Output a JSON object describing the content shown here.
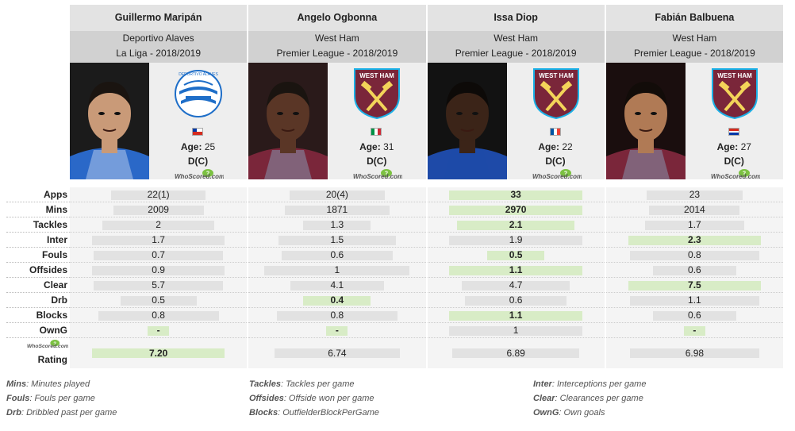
{
  "colors": {
    "best_bar": "#d8ecc6",
    "normal_bar": "#e2e2e2",
    "header_bg": "#d1d1d1",
    "name_bg": "#e3e3e3"
  },
  "players": [
    {
      "name": "Guillermo Maripán",
      "team": "Deportivo Alaves",
      "competition": "La Liga - 2018/2019",
      "age_label": "Age:",
      "age": "25",
      "position": "D(C)",
      "crest": "alaves-crest-icon",
      "flag": "chile-flag-icon",
      "crest_text": "DEPORTIVO ALAVES",
      "ws_logo": "WhoScored.com",
      "stats": [
        {
          "value": "22(1)",
          "fill": 0.53,
          "best": false
        },
        {
          "value": "2009",
          "fill": 0.51,
          "best": false
        },
        {
          "value": "2",
          "fill": 0.63,
          "best": false
        },
        {
          "value": "1.7",
          "fill": 0.75,
          "best": false
        },
        {
          "value": "0.7",
          "fill": 0.73,
          "best": false
        },
        {
          "value": "0.9",
          "fill": 0.75,
          "best": false
        },
        {
          "value": "5.7",
          "fill": 0.73,
          "best": false
        },
        {
          "value": "0.5",
          "fill": 0.43,
          "best": false
        },
        {
          "value": "0.8",
          "fill": 0.68,
          "best": false
        },
        {
          "value": "-",
          "fill": 0.12,
          "best": true
        },
        {
          "value": "7.20",
          "fill": 0.75,
          "best": true
        }
      ]
    },
    {
      "name": "Angelo Ogbonna",
      "team": "West Ham",
      "competition": "Premier League - 2018/2019",
      "age_label": "Age:",
      "age": "31",
      "position": "D(C)",
      "crest": "west-ham-crest-icon",
      "flag": "italy-flag-icon",
      "crest_text": "WEST HAM",
      "ws_logo": "WhoScored.com",
      "stats": [
        {
          "value": "20(4)",
          "fill": 0.54,
          "best": false
        },
        {
          "value": "1871",
          "fill": 0.59,
          "best": false
        },
        {
          "value": "1.3",
          "fill": 0.38,
          "best": false
        },
        {
          "value": "1.5",
          "fill": 0.66,
          "best": false
        },
        {
          "value": "0.6",
          "fill": 0.63,
          "best": false
        },
        {
          "value": "1",
          "fill": 0.82,
          "best": false
        },
        {
          "value": "4.1",
          "fill": 0.53,
          "best": false
        },
        {
          "value": "0.4",
          "fill": 0.38,
          "best": true
        },
        {
          "value": "0.8",
          "fill": 0.68,
          "best": false
        },
        {
          "value": "-",
          "fill": 0.12,
          "best": true
        },
        {
          "value": "6.74",
          "fill": 0.71,
          "best": false
        }
      ]
    },
    {
      "name": "Issa Diop",
      "team": "West Ham",
      "competition": "Premier League - 2018/2019",
      "age_label": "Age:",
      "age": "22",
      "position": "D(C)",
      "crest": "west-ham-crest-icon",
      "flag": "france-flag-icon",
      "crest_text": "WEST HAM",
      "ws_logo": "WhoScored.com",
      "stats": [
        {
          "value": "33",
          "fill": 0.75,
          "best": true
        },
        {
          "value": "2970",
          "fill": 0.75,
          "best": true
        },
        {
          "value": "2.1",
          "fill": 0.66,
          "best": true
        },
        {
          "value": "1.9",
          "fill": 0.75,
          "best": false
        },
        {
          "value": "0.5",
          "fill": 0.32,
          "best": true
        },
        {
          "value": "1.1",
          "fill": 0.75,
          "best": true
        },
        {
          "value": "4.7",
          "fill": 0.61,
          "best": false
        },
        {
          "value": "0.6",
          "fill": 0.57,
          "best": false
        },
        {
          "value": "1.1",
          "fill": 0.75,
          "best": true
        },
        {
          "value": "1",
          "fill": 0.75,
          "best": false
        },
        {
          "value": "6.89",
          "fill": 0.72,
          "best": false
        }
      ]
    },
    {
      "name": "Fabián Balbuena",
      "team": "West Ham",
      "competition": "Premier League - 2018/2019",
      "age_label": "Age:",
      "age": "27",
      "position": "D(C)",
      "crest": "west-ham-crest-icon",
      "flag": "paraguay-flag-icon",
      "crest_text": "WEST HAM",
      "ws_logo": "WhoScored.com",
      "stats": [
        {
          "value": "23",
          "fill": 0.54,
          "best": false
        },
        {
          "value": "2014",
          "fill": 0.51,
          "best": false
        },
        {
          "value": "1.7",
          "fill": 0.56,
          "best": false
        },
        {
          "value": "2.3",
          "fill": 0.75,
          "best": true
        },
        {
          "value": "0.8",
          "fill": 0.73,
          "best": false
        },
        {
          "value": "0.6",
          "fill": 0.47,
          "best": false
        },
        {
          "value": "7.5",
          "fill": 0.75,
          "best": true
        },
        {
          "value": "1.1",
          "fill": 0.73,
          "best": false
        },
        {
          "value": "0.6",
          "fill": 0.47,
          "best": false
        },
        {
          "value": "-",
          "fill": 0.12,
          "best": true
        },
        {
          "value": "6.98",
          "fill": 0.73,
          "best": false
        }
      ]
    }
  ],
  "row_labels": [
    "Apps",
    "Mins",
    "Tackles",
    "Inter",
    "Fouls",
    "Offsides",
    "Clear",
    "Drb",
    "Blocks",
    "OwnG"
  ],
  "rating_label": "Rating",
  "rating_logo": "WhoScored.com",
  "legend": [
    [
      {
        "key": "Mins",
        "desc": ": Minutes played"
      },
      {
        "key": "Fouls",
        "desc": ": Fouls per game"
      },
      {
        "key": "Drb",
        "desc": ": Dribbled past per game"
      }
    ],
    [
      {
        "key": "Tackles",
        "desc": ": Tackles per game"
      },
      {
        "key": "Offsides",
        "desc": ": Offside won per game"
      },
      {
        "key": "Blocks",
        "desc": ": OutfielderBlockPerGame"
      }
    ],
    [
      {
        "key": "Inter",
        "desc": ": Interceptions per game"
      },
      {
        "key": "Clear",
        "desc": ": Clearances per game"
      },
      {
        "key": "OwnG",
        "desc": ": Own goals"
      }
    ]
  ]
}
